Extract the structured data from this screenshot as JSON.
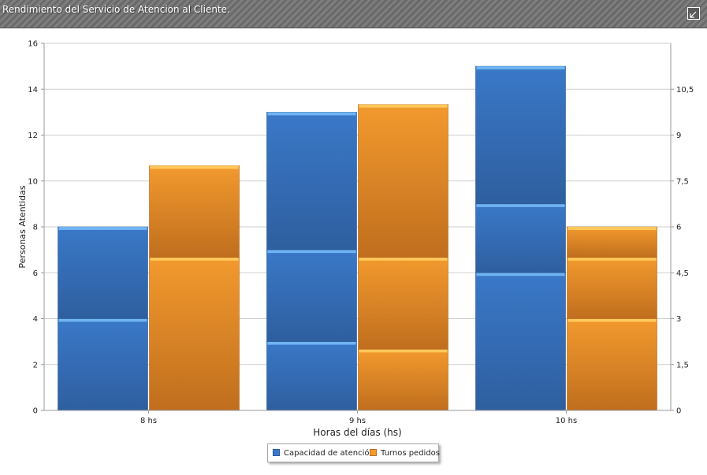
{
  "window": {
    "title": "Rendimiento del Servicio de Atencion al Cliente."
  },
  "colors": {
    "blue": "#3a78c8",
    "blue_dark": "#2e5f9f",
    "blue_cap": "#6fb4f2",
    "orange": "#f29a2e",
    "orange_dark": "#c06e1e",
    "orange_cap": "#ffc85a"
  },
  "chart_data": {
    "type": "bar",
    "stacked": true,
    "categories": [
      "8 hs",
      "9 hs",
      "10 hs"
    ],
    "xlabel": "Horas del días (hs)",
    "ylabel": "Personas Atentidas",
    "ylim": [
      0,
      16
    ],
    "yticks": [
      "0",
      "2",
      "4",
      "6",
      "8",
      "10",
      "12",
      "14",
      "16"
    ],
    "y2lim": [
      0,
      12
    ],
    "y2ticks": [
      "0",
      "1,5",
      "3",
      "4,5",
      "6",
      "7,5",
      "9",
      "10,5"
    ],
    "grid": true,
    "series": [
      {
        "name": "Capacidad de atención",
        "axis": "left",
        "segments": [
          [
            4,
            4
          ],
          [
            3,
            4,
            6
          ],
          [
            6,
            3,
            6
          ]
        ]
      },
      {
        "name": "Turnos pedidos",
        "axis": "right",
        "segments": [
          [
            5,
            3
          ],
          [
            2,
            3,
            5
          ],
          [
            3,
            2,
            1
          ]
        ]
      }
    ]
  }
}
